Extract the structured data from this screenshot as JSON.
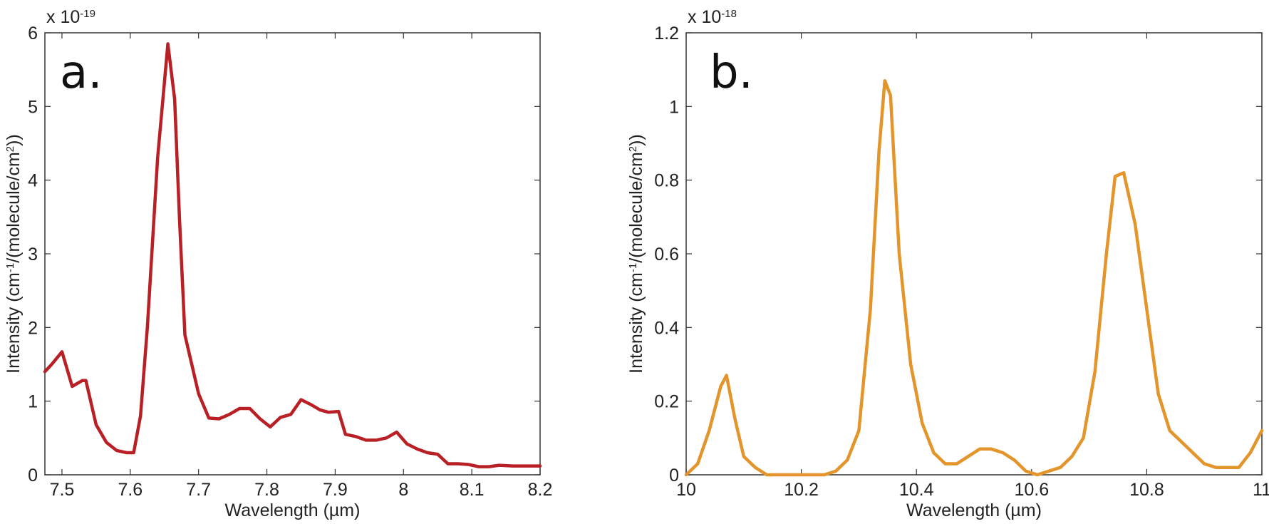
{
  "chart_data": [
    {
      "type": "line",
      "panel_label": "a.",
      "xlabel": "Wavelength (µm)",
      "ylabel": "Intensity (cm⁻¹/(molecule/cm²))",
      "y_multiplier": "x 10⁻¹⁹",
      "xlim": [
        7.475,
        8.2
      ],
      "ylim": [
        0,
        6
      ],
      "xticks": [
        7.5,
        7.6,
        7.7,
        7.8,
        7.9,
        8,
        8.1,
        8.2
      ],
      "xtick_labels": [
        "7.5",
        "7.6",
        "7.7",
        "7.8",
        "7.9",
        "8",
        "8.1",
        "8.2"
      ],
      "yticks": [
        0,
        1,
        2,
        3,
        4,
        5,
        6
      ],
      "ytick_labels": [
        "0",
        "1",
        "2",
        "3",
        "4",
        "5",
        "6"
      ],
      "grid": false,
      "color": "#b82025",
      "series": [
        {
          "x": [
            7.475,
            7.485,
            7.5,
            7.515,
            7.53,
            7.535,
            7.55,
            7.565,
            7.58,
            7.595,
            7.605,
            7.615,
            7.625,
            7.64,
            7.655,
            7.665,
            7.672,
            7.68,
            7.69,
            7.7,
            7.715,
            7.73,
            7.745,
            7.76,
            7.775,
            7.79,
            7.805,
            7.82,
            7.835,
            7.85,
            7.865,
            7.878,
            7.89,
            7.905,
            7.915,
            7.93,
            7.945,
            7.96,
            7.975,
            7.99,
            8.005,
            8.02,
            8.035,
            8.05,
            8.065,
            8.08,
            8.095,
            8.11,
            8.125,
            8.14,
            8.16,
            8.18,
            8.2
          ],
          "y": [
            1.4,
            1.5,
            1.67,
            1.2,
            1.28,
            1.28,
            0.68,
            0.44,
            0.33,
            0.3,
            0.3,
            0.8,
            2.0,
            4.3,
            5.85,
            5.1,
            3.5,
            1.9,
            1.5,
            1.1,
            0.77,
            0.76,
            0.82,
            0.9,
            0.9,
            0.76,
            0.65,
            0.78,
            0.82,
            1.02,
            0.95,
            0.88,
            0.85,
            0.86,
            0.55,
            0.52,
            0.47,
            0.47,
            0.5,
            0.58,
            0.42,
            0.35,
            0.3,
            0.28,
            0.15,
            0.15,
            0.14,
            0.11,
            0.11,
            0.13,
            0.12,
            0.12,
            0.12
          ]
        }
      ]
    },
    {
      "type": "line",
      "panel_label": "b.",
      "xlabel": "Wavelength (µm)",
      "ylabel": "Intensity (cm⁻¹/(molecule/cm²))",
      "y_multiplier": "x 10⁻¹⁸",
      "xlim": [
        10,
        11
      ],
      "ylim": [
        0,
        1.2
      ],
      "xticks": [
        10,
        10.2,
        10.4,
        10.6,
        10.8,
        11
      ],
      "xtick_labels": [
        "10",
        "10.2",
        "10.4",
        "10.6",
        "10.8",
        "11"
      ],
      "yticks": [
        0,
        0.2,
        0.4,
        0.6,
        0.8,
        1,
        1.2
      ],
      "ytick_labels": [
        "0",
        "0.2",
        "0.4",
        "0.6",
        "0.8",
        "1",
        "1.2"
      ],
      "grid": false,
      "color": "#e3952b",
      "series": [
        {
          "x": [
            10,
            10.02,
            10.04,
            10.06,
            10.07,
            10.085,
            10.1,
            10.12,
            10.14,
            10.16,
            10.2,
            10.24,
            10.26,
            10.28,
            10.3,
            10.32,
            10.335,
            10.345,
            10.355,
            10.37,
            10.39,
            10.41,
            10.43,
            10.45,
            10.47,
            10.49,
            10.51,
            10.53,
            10.55,
            10.57,
            10.59,
            10.61,
            10.63,
            10.65,
            10.67,
            10.69,
            10.71,
            10.73,
            10.745,
            10.76,
            10.78,
            10.8,
            10.82,
            10.84,
            10.86,
            10.88,
            10.9,
            10.92,
            10.94,
            10.96,
            10.98,
            11
          ],
          "y": [
            0.0,
            0.03,
            0.12,
            0.24,
            0.27,
            0.15,
            0.05,
            0.02,
            0.0,
            0.0,
            0.0,
            0.0,
            0.01,
            0.04,
            0.12,
            0.45,
            0.88,
            1.07,
            1.03,
            0.6,
            0.3,
            0.14,
            0.06,
            0.03,
            0.03,
            0.05,
            0.07,
            0.07,
            0.06,
            0.04,
            0.01,
            0.0,
            0.01,
            0.02,
            0.05,
            0.1,
            0.28,
            0.6,
            0.81,
            0.82,
            0.68,
            0.45,
            0.22,
            0.12,
            0.09,
            0.06,
            0.03,
            0.02,
            0.02,
            0.02,
            0.06,
            0.12
          ]
        }
      ]
    }
  ]
}
